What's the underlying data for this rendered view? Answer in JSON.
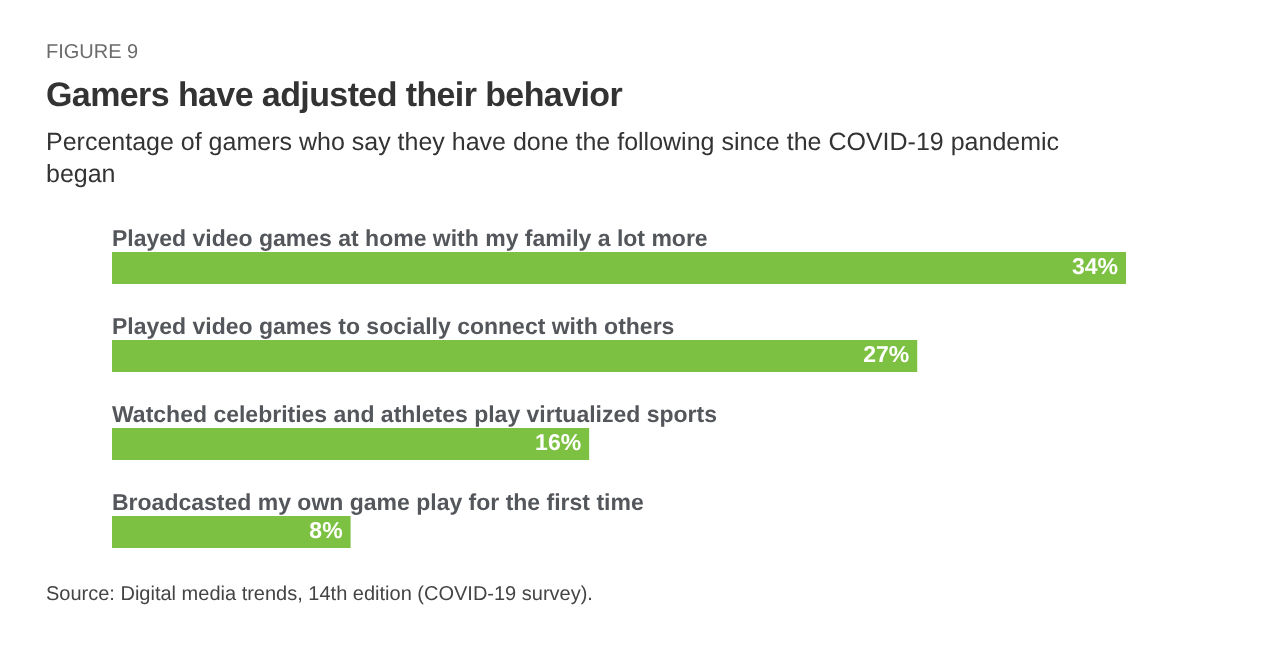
{
  "chart_data": {
    "type": "bar",
    "orientation": "horizontal",
    "title": "Gamers have adjusted their behavior",
    "subtitle": "Percentage of gamers who say they have done the following since the COVID-19 pandemic began",
    "categories": [
      "Played video games at home with my family a lot more",
      "Played video games to socially connect with others",
      "Watched celebrities and athletes play virtualized sports",
      "Broadcasted my own game play for the first time"
    ],
    "values": [
      34,
      27,
      16,
      8
    ],
    "color": "#7dc142",
    "data_labels": true,
    "value_labels": [
      "34%",
      "27%",
      "16%",
      "8%"
    ],
    "annotations": [
      "FIGURE 9",
      "Source: Digital media trends, 14th edition (COVID-19 survey)."
    ]
  }
}
